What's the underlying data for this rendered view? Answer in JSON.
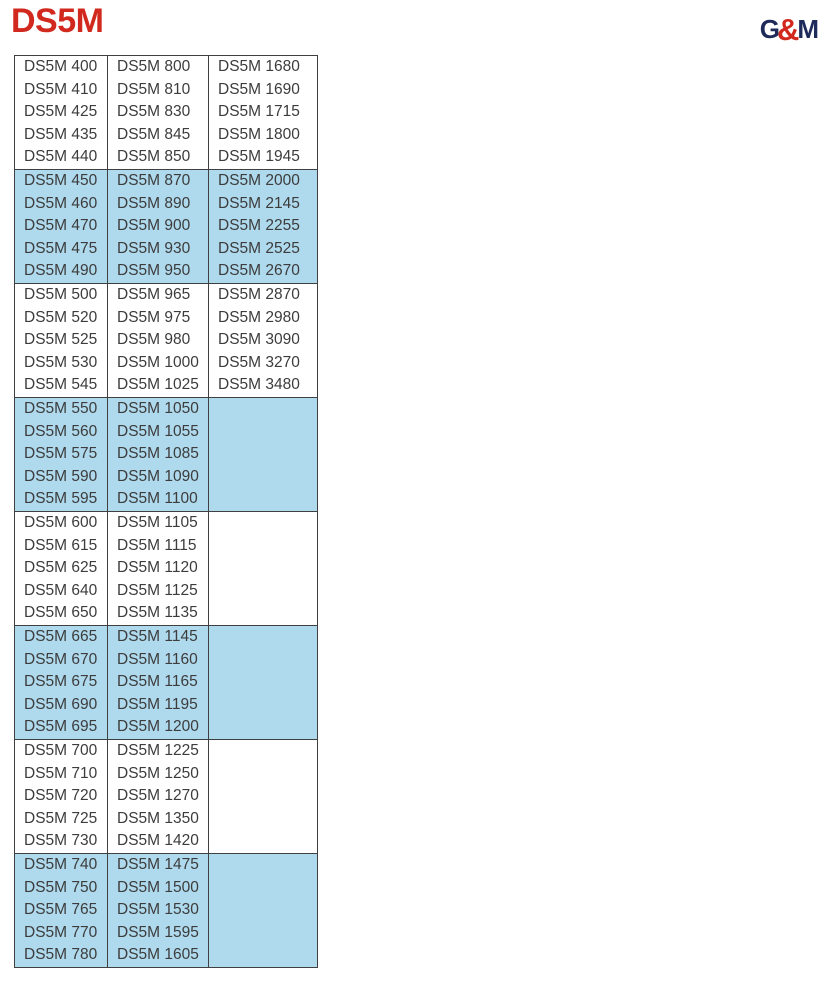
{
  "header": {
    "title": "DS5M",
    "logo": {
      "g": "G",
      "ampersand": "&",
      "m": "M"
    }
  },
  "colors": {
    "title_red": "#d2291e",
    "logo_navy": "#1e2a5a",
    "band_blue": "#afd9ec",
    "border": "#404040",
    "text": "#3c3c3c"
  },
  "table": {
    "bands": [
      {
        "shaded": false,
        "columns": [
          [
            "DS5M 400",
            "DS5M 410",
            "DS5M 425",
            "DS5M 435",
            "DS5M 440"
          ],
          [
            "DS5M 800",
            "DS5M 810",
            "DS5M 830",
            "DS5M 845",
            "DS5M 850"
          ],
          [
            "DS5M 1680",
            "DS5M 1690",
            "DS5M 1715",
            "DS5M 1800",
            "DS5M 1945"
          ]
        ]
      },
      {
        "shaded": true,
        "columns": [
          [
            "DS5M 450",
            "DS5M 460",
            "DS5M 470",
            "DS5M 475",
            "DS5M 490"
          ],
          [
            "DS5M 870",
            "DS5M 890",
            "DS5M 900",
            "DS5M 930",
            "DS5M 950"
          ],
          [
            "DS5M 2000",
            "DS5M 2145",
            "DS5M 2255",
            "DS5M 2525",
            "DS5M 2670"
          ]
        ]
      },
      {
        "shaded": false,
        "columns": [
          [
            "DS5M 500",
            "DS5M 520",
            "DS5M 525",
            "DS5M 530",
            "DS5M 545"
          ],
          [
            "DS5M 965",
            "DS5M 975",
            "DS5M 980",
            "DS5M 1000",
            "DS5M 1025"
          ],
          [
            "DS5M 2870",
            "DS5M 2980",
            "DS5M 3090",
            "DS5M 3270",
            "DS5M 3480"
          ]
        ]
      },
      {
        "shaded": true,
        "columns": [
          [
            "DS5M 550",
            "DS5M 560",
            "DS5M 575",
            "DS5M 590",
            "DS5M 595"
          ],
          [
            "DS5M 1050",
            "DS5M 1055",
            "DS5M 1085",
            "DS5M 1090",
            "DS5M 1100"
          ],
          []
        ]
      },
      {
        "shaded": false,
        "columns": [
          [
            "DS5M 600",
            "DS5M 615",
            "DS5M 625",
            "DS5M 640",
            "DS5M 650"
          ],
          [
            "DS5M 1105",
            "DS5M 1115",
            "DS5M 1120",
            "DS5M 1125",
            "DS5M 1135"
          ],
          []
        ]
      },
      {
        "shaded": true,
        "columns": [
          [
            "DS5M 665",
            "DS5M 670",
            "DS5M 675",
            "DS5M 690",
            "DS5M 695"
          ],
          [
            "DS5M 1145",
            "DS5M 1160",
            "DS5M 1165",
            "DS5M 1195",
            "DS5M 1200"
          ],
          []
        ]
      },
      {
        "shaded": false,
        "columns": [
          [
            "DS5M 700",
            "DS5M 710",
            "DS5M 720",
            "DS5M 725",
            "DS5M 730"
          ],
          [
            "DS5M 1225",
            "DS5M 1250",
            "DS5M 1270",
            "DS5M 1350",
            "DS5M 1420"
          ],
          []
        ]
      },
      {
        "shaded": true,
        "columns": [
          [
            "DS5M 740",
            "DS5M 750",
            "DS5M 765",
            "DS5M 770",
            "DS5M 780"
          ],
          [
            "DS5M 1475",
            "DS5M 1500",
            "DS5M 1530",
            "DS5M 1595",
            "DS5M 1605"
          ],
          []
        ]
      }
    ]
  }
}
